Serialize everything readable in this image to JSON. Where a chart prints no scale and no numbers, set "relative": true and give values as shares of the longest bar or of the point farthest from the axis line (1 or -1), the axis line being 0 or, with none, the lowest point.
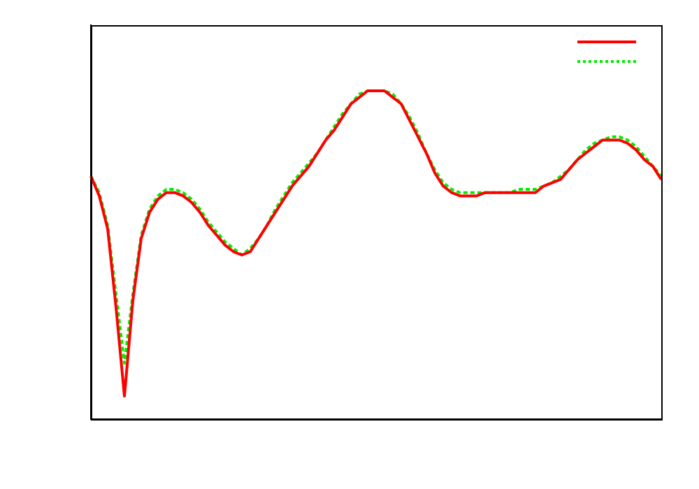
{
  "chart_data": {
    "type": "line",
    "relative": true,
    "marker": "none",
    "grid": false,
    "categories": [
      null,
      null,
      null,
      null,
      null,
      null,
      null,
      null,
      null,
      null,
      null,
      null,
      null,
      null,
      null,
      null,
      null,
      null,
      null,
      null,
      null,
      null,
      null,
      null,
      null,
      null,
      null,
      null,
      null,
      null,
      null,
      null,
      null,
      null,
      null,
      null,
      null,
      null,
      null,
      null,
      null,
      null,
      null,
      null,
      null,
      null,
      null,
      null,
      null,
      null,
      null,
      null,
      null,
      null,
      null,
      null,
      null,
      null,
      null,
      null,
      null,
      null,
      null,
      null,
      null,
      null,
      null,
      null,
      null
    ],
    "series": [
      {
        "color": "#ff0000",
        "line_style": "solid",
        "values": [
          0.74,
          0.68,
          0.58,
          0.34,
          0.07,
          0.36,
          0.55,
          0.63,
          0.67,
          0.69,
          0.69,
          0.68,
          0.66,
          0.63,
          0.59,
          0.56,
          0.53,
          0.51,
          0.5,
          0.51,
          0.55,
          0.59,
          0.63,
          0.67,
          0.71,
          0.74,
          0.77,
          0.81,
          0.85,
          0.88,
          0.92,
          0.96,
          0.98,
          1.0,
          1.0,
          1.0,
          0.98,
          0.96,
          0.91,
          0.86,
          0.81,
          0.75,
          0.71,
          0.69,
          0.68,
          0.68,
          0.68,
          0.69,
          0.69,
          0.69,
          0.69,
          0.69,
          0.69,
          0.69,
          0.71,
          0.72,
          0.73,
          0.76,
          0.79,
          0.81,
          0.83,
          0.85,
          0.85,
          0.85,
          0.84,
          0.82,
          0.79,
          0.77,
          0.73
        ]
      },
      {
        "color": "#00ee00",
        "line_style": "dotted",
        "values": [
          0.74,
          0.69,
          0.59,
          0.38,
          0.17,
          0.38,
          0.56,
          0.64,
          0.68,
          0.7,
          0.7,
          0.69,
          0.67,
          0.64,
          0.6,
          0.57,
          0.54,
          0.52,
          0.5,
          0.52,
          0.55,
          0.59,
          0.64,
          0.68,
          0.72,
          0.75,
          0.78,
          0.81,
          0.85,
          0.89,
          0.93,
          0.96,
          0.99,
          1.0,
          1.0,
          1.0,
          0.99,
          0.96,
          0.92,
          0.87,
          0.81,
          0.76,
          0.72,
          0.7,
          0.69,
          0.69,
          0.69,
          0.69,
          0.69,
          0.69,
          0.69,
          0.7,
          0.7,
          0.7,
          0.71,
          0.72,
          0.74,
          0.76,
          0.79,
          0.82,
          0.84,
          0.85,
          0.86,
          0.86,
          0.85,
          0.83,
          0.8,
          0.77,
          0.74
        ]
      }
    ]
  }
}
